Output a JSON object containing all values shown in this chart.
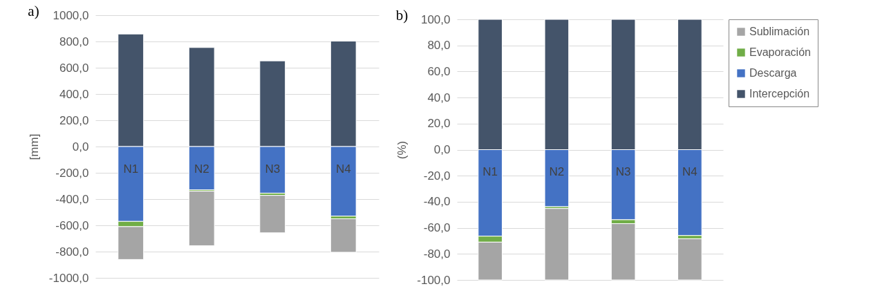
{
  "chart_data": [
    {
      "type": "bar",
      "title": "a)",
      "ylabel": "[mm]",
      "categories": [
        "N1",
        "N2",
        "N3",
        "N4"
      ],
      "stacked": true,
      "grid": "y",
      "legend": false,
      "ylim": [
        -1000,
        1000
      ],
      "yticks": [
        {
          "value": -1000,
          "label": "-1000,0"
        },
        {
          "value": -800,
          "label": "-800,0"
        },
        {
          "value": -600,
          "label": "-600,0"
        },
        {
          "value": -400,
          "label": "-400,0"
        },
        {
          "value": -200,
          "label": "-200,0"
        },
        {
          "value": 0,
          "label": "0,0"
        },
        {
          "value": 200,
          "label": "200,0"
        },
        {
          "value": 400,
          "label": "400,0"
        },
        {
          "value": 600,
          "label": "600,0"
        },
        {
          "value": 800,
          "label": "800,0"
        },
        {
          "value": 1000,
          "label": "1000,0"
        }
      ],
      "series": [
        {
          "color": "#44546a",
          "values": [
            857,
            754,
            652,
            803
          ]
        },
        {
          "color": "#4472c4",
          "values": [
            -570,
            -330,
            -355,
            -530
          ]
        },
        {
          "color": "#70ad47",
          "values": [
            -40,
            -10,
            -17,
            -20
          ]
        },
        {
          "color": "#a5a5a5",
          "values": [
            -250,
            -415,
            -285,
            -255
          ]
        }
      ]
    },
    {
      "type": "bar",
      "title": "b)",
      "ylabel": "(%)",
      "categories": [
        "N1",
        "N2",
        "N3",
        "N4"
      ],
      "stacked": true,
      "grid": "y",
      "legend": "right",
      "ylim": [
        -100,
        100
      ],
      "yticks": [
        {
          "value": -100,
          "label": "-100,0"
        },
        {
          "value": -80,
          "label": "-80,0"
        },
        {
          "value": -60,
          "label": "-60,0"
        },
        {
          "value": -40,
          "label": "-40,0"
        },
        {
          "value": -20,
          "label": "-20,0"
        },
        {
          "value": 0,
          "label": "0,0"
        },
        {
          "value": 20,
          "label": "20,0"
        },
        {
          "value": 40,
          "label": "40,0"
        },
        {
          "value": 60,
          "label": "60,0"
        },
        {
          "value": 80,
          "label": "80,0"
        },
        {
          "value": 100,
          "label": "100,0"
        }
      ],
      "series": [
        {
          "name": "Intercepción",
          "color": "#44546a",
          "values": [
            100,
            100,
            100,
            100
          ]
        },
        {
          "name": "Descarga",
          "color": "#4472c4",
          "values": [
            -66.4,
            -43.8,
            -53.8,
            -65.9
          ]
        },
        {
          "name": "Evaporación",
          "color": "#70ad47",
          "values": [
            -4.6,
            -1.4,
            -3,
            -2.5
          ]
        },
        {
          "name": "Sublimación",
          "color": "#a5a5a5",
          "values": [
            -29,
            -54.8,
            -43.2,
            -31.6
          ]
        }
      ]
    }
  ]
}
